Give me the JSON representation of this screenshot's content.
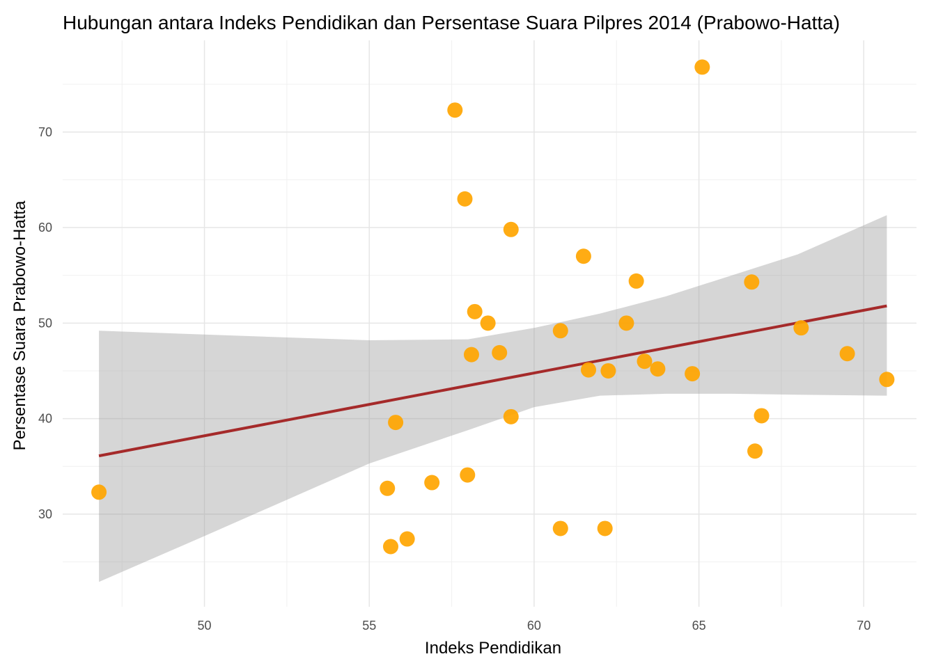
{
  "chart_data": {
    "type": "scatter",
    "title": "Hubungan antara Indeks Pendidikan dan Persentase Suara Pilpres 2014 (Prabowo-Hatta)",
    "xlabel": "Indeks Pendidikan",
    "ylabel": "Persentase Suara Prabowo-Hatta",
    "xlim": [
      45.7,
      71.6
    ],
    "ylim": [
      20.3,
      79.6
    ],
    "x_ticks": [
      "50",
      "55",
      "60",
      "65",
      "70"
    ],
    "y_ticks": [
      "30",
      "40",
      "50",
      "60",
      "70"
    ],
    "grid": true,
    "point_color": "#FFA500",
    "line_color": "#A52A2A",
    "band_color": "#999999",
    "points": [
      {
        "x": 46.8,
        "y": 32.3
      },
      {
        "x": 55.55,
        "y": 32.7
      },
      {
        "x": 55.65,
        "y": 26.6
      },
      {
        "x": 55.8,
        "y": 39.6
      },
      {
        "x": 56.15,
        "y": 27.4
      },
      {
        "x": 56.9,
        "y": 33.3
      },
      {
        "x": 57.6,
        "y": 72.3
      },
      {
        "x": 57.9,
        "y": 63.0
      },
      {
        "x": 57.98,
        "y": 34.1
      },
      {
        "x": 58.1,
        "y": 46.7
      },
      {
        "x": 58.2,
        "y": 51.2
      },
      {
        "x": 58.6,
        "y": 50.0
      },
      {
        "x": 58.95,
        "y": 46.9
      },
      {
        "x": 59.3,
        "y": 59.8
      },
      {
        "x": 59.3,
        "y": 40.2
      },
      {
        "x": 60.8,
        "y": 49.2
      },
      {
        "x": 60.8,
        "y": 28.5
      },
      {
        "x": 61.5,
        "y": 57.0
      },
      {
        "x": 61.65,
        "y": 45.1
      },
      {
        "x": 62.15,
        "y": 28.5
      },
      {
        "x": 62.25,
        "y": 45.0
      },
      {
        "x": 62.8,
        "y": 50.0
      },
      {
        "x": 63.1,
        "y": 54.4
      },
      {
        "x": 63.35,
        "y": 46.0
      },
      {
        "x": 63.75,
        "y": 45.2
      },
      {
        "x": 64.8,
        "y": 44.7
      },
      {
        "x": 65.1,
        "y": 76.8
      },
      {
        "x": 66.6,
        "y": 54.3
      },
      {
        "x": 66.7,
        "y": 36.6
      },
      {
        "x": 66.9,
        "y": 40.3
      },
      {
        "x": 68.1,
        "y": 49.5
      },
      {
        "x": 69.5,
        "y": 46.8
      },
      {
        "x": 70.7,
        "y": 44.1
      }
    ],
    "trend": {
      "x": [
        46.8,
        70.7
      ],
      "y": [
        36.1,
        51.8
      ]
    },
    "confidence_band": {
      "x": [
        46.8,
        50.0,
        55.0,
        58.0,
        60.0,
        62.0,
        64.0,
        66.0,
        68.0,
        70.7
      ],
      "upper": [
        49.2,
        48.8,
        48.2,
        48.3,
        49.5,
        51.0,
        52.8,
        55.0,
        57.2,
        61.3
      ],
      "lower": [
        22.9,
        27.7,
        35.3,
        38.8,
        41.2,
        42.4,
        42.6,
        42.6,
        42.5,
        42.4
      ]
    }
  }
}
